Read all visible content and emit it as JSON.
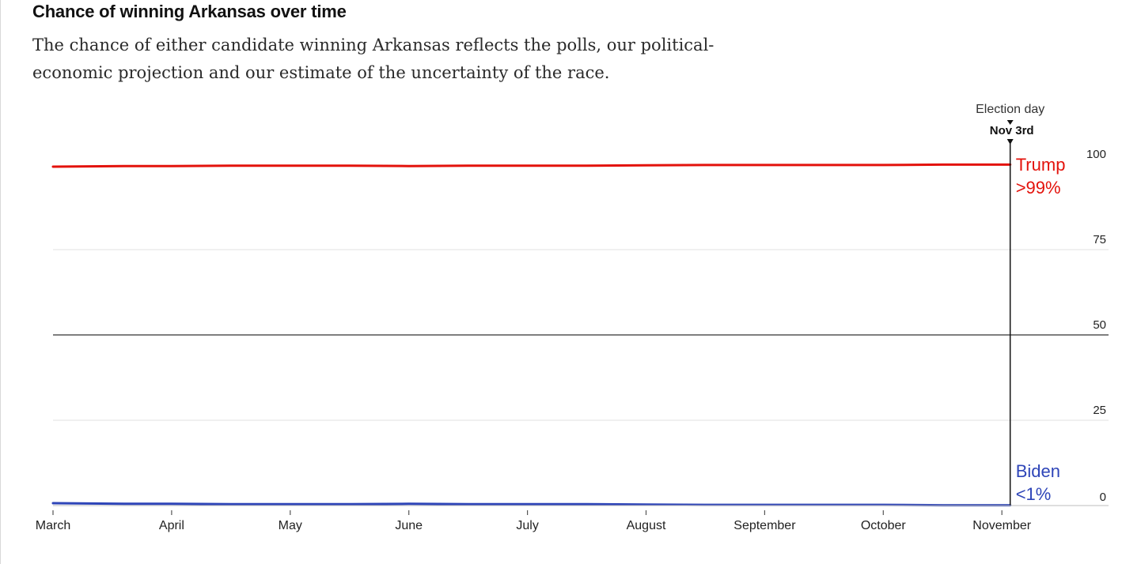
{
  "chart_data": {
    "type": "line",
    "title": "Chance of winning Arkansas over time",
    "subtitle_lines": [
      "The chance of either candidate winning Arkansas reflects the polls, our political-",
      "economic projection and our estimate of the uncertainty of the race."
    ],
    "xlabel": "",
    "ylabel": "",
    "ylim": [
      0,
      100
    ],
    "y_ticks": [
      0,
      25,
      50,
      75,
      100
    ],
    "x_ticks": [
      "March",
      "April",
      "May",
      "June",
      "July",
      "August",
      "September",
      "October",
      "November"
    ],
    "x_range": [
      "March",
      "November"
    ],
    "marker": {
      "label": "Election day",
      "date": "Nov 3rd",
      "position_months": 8.07
    },
    "series": [
      {
        "name": "Trump",
        "final_label": ">99%",
        "color": "#e3120b",
        "months": [
          0,
          0.3,
          0.6,
          1,
          1.5,
          2,
          2.5,
          3,
          3.5,
          4,
          4.5,
          5,
          5.5,
          6,
          6.5,
          7,
          7.5,
          8,
          8.07
        ],
        "values": [
          99.3,
          99.4,
          99.5,
          99.5,
          99.6,
          99.6,
          99.6,
          99.5,
          99.6,
          99.6,
          99.6,
          99.7,
          99.8,
          99.8,
          99.8,
          99.8,
          99.9,
          99.9,
          99.9
        ]
      },
      {
        "name": "Biden",
        "final_label": "<1%",
        "color": "#2e45b8",
        "months": [
          0,
          0.3,
          0.6,
          1,
          1.5,
          2,
          2.5,
          3,
          3.5,
          4,
          4.5,
          5,
          5.5,
          6,
          6.5,
          7,
          7.5,
          8,
          8.07
        ],
        "values": [
          0.7,
          0.6,
          0.5,
          0.5,
          0.4,
          0.4,
          0.4,
          0.5,
          0.4,
          0.4,
          0.4,
          0.3,
          0.2,
          0.2,
          0.2,
          0.2,
          0.1,
          0.1,
          0.1
        ]
      }
    ]
  },
  "colors": {
    "grid": "#e0e0e0",
    "midline": "#333333",
    "axis_text": "#222222"
  }
}
